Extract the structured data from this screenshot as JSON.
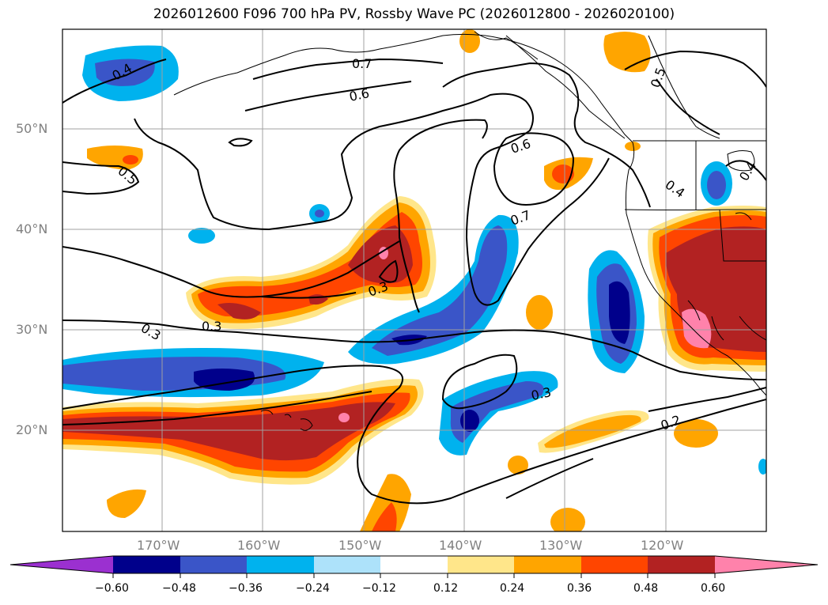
{
  "title": "2026012600 F096 700 hPa PV, Rossby Wave PC (2026012800 - 2026020100)",
  "lat_labels": [
    "50°N",
    "40°N",
    "30°N",
    "20°N"
  ],
  "lon_labels": [
    "170°W",
    "160°W",
    "150°W",
    "140°W",
    "130°W",
    "120°W"
  ],
  "contour_labels": [
    "0.4",
    "0.7",
    "0.6",
    "0.5",
    "0.5",
    "0.6",
    "0.4",
    "0.4",
    "0.7",
    "0.3",
    "0.3",
    "0.3",
    "0.3",
    "0.2"
  ],
  "colorbar": {
    "ticks": [
      "−0.60",
      "−0.48",
      "−0.36",
      "−0.24",
      "−0.12",
      "0.12",
      "0.24",
      "0.36",
      "0.48",
      "0.60"
    ],
    "colors": [
      "#9b30d0",
      "#00008b",
      "#3a55c8",
      "#00b2ee",
      "#ade2fa",
      "#ffffff",
      "#ffe68a",
      "#ffa500",
      "#ff4500",
      "#b22222",
      "#ff82ab"
    ]
  },
  "map_extent": {
    "lon": [
      "180°",
      "110°W"
    ],
    "lat": [
      "10°N",
      "60°N"
    ]
  }
}
